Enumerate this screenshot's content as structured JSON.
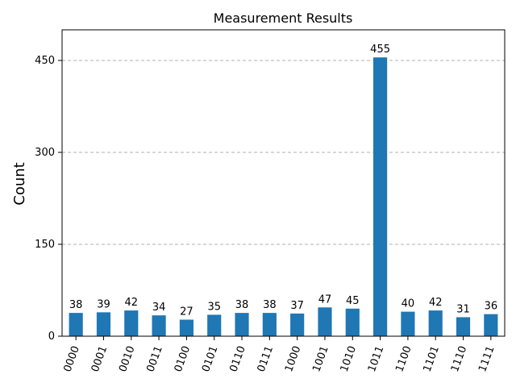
{
  "chart_data": {
    "type": "bar",
    "title": "Measurement Results",
    "xlabel": "",
    "ylabel": "Count",
    "categories": [
      "0000",
      "0001",
      "0010",
      "0011",
      "0100",
      "0101",
      "0110",
      "0111",
      "1000",
      "1001",
      "1010",
      "1011",
      "1100",
      "1101",
      "1110",
      "1111"
    ],
    "values": [
      38,
      39,
      42,
      34,
      27,
      35,
      38,
      38,
      37,
      47,
      45,
      455,
      40,
      42,
      31,
      36
    ],
    "ylim": [
      0,
      500
    ],
    "yticks": [
      0,
      150,
      300,
      450
    ],
    "grid": "y-dashed",
    "bar_color": "#1f77b4",
    "legend": "none"
  }
}
